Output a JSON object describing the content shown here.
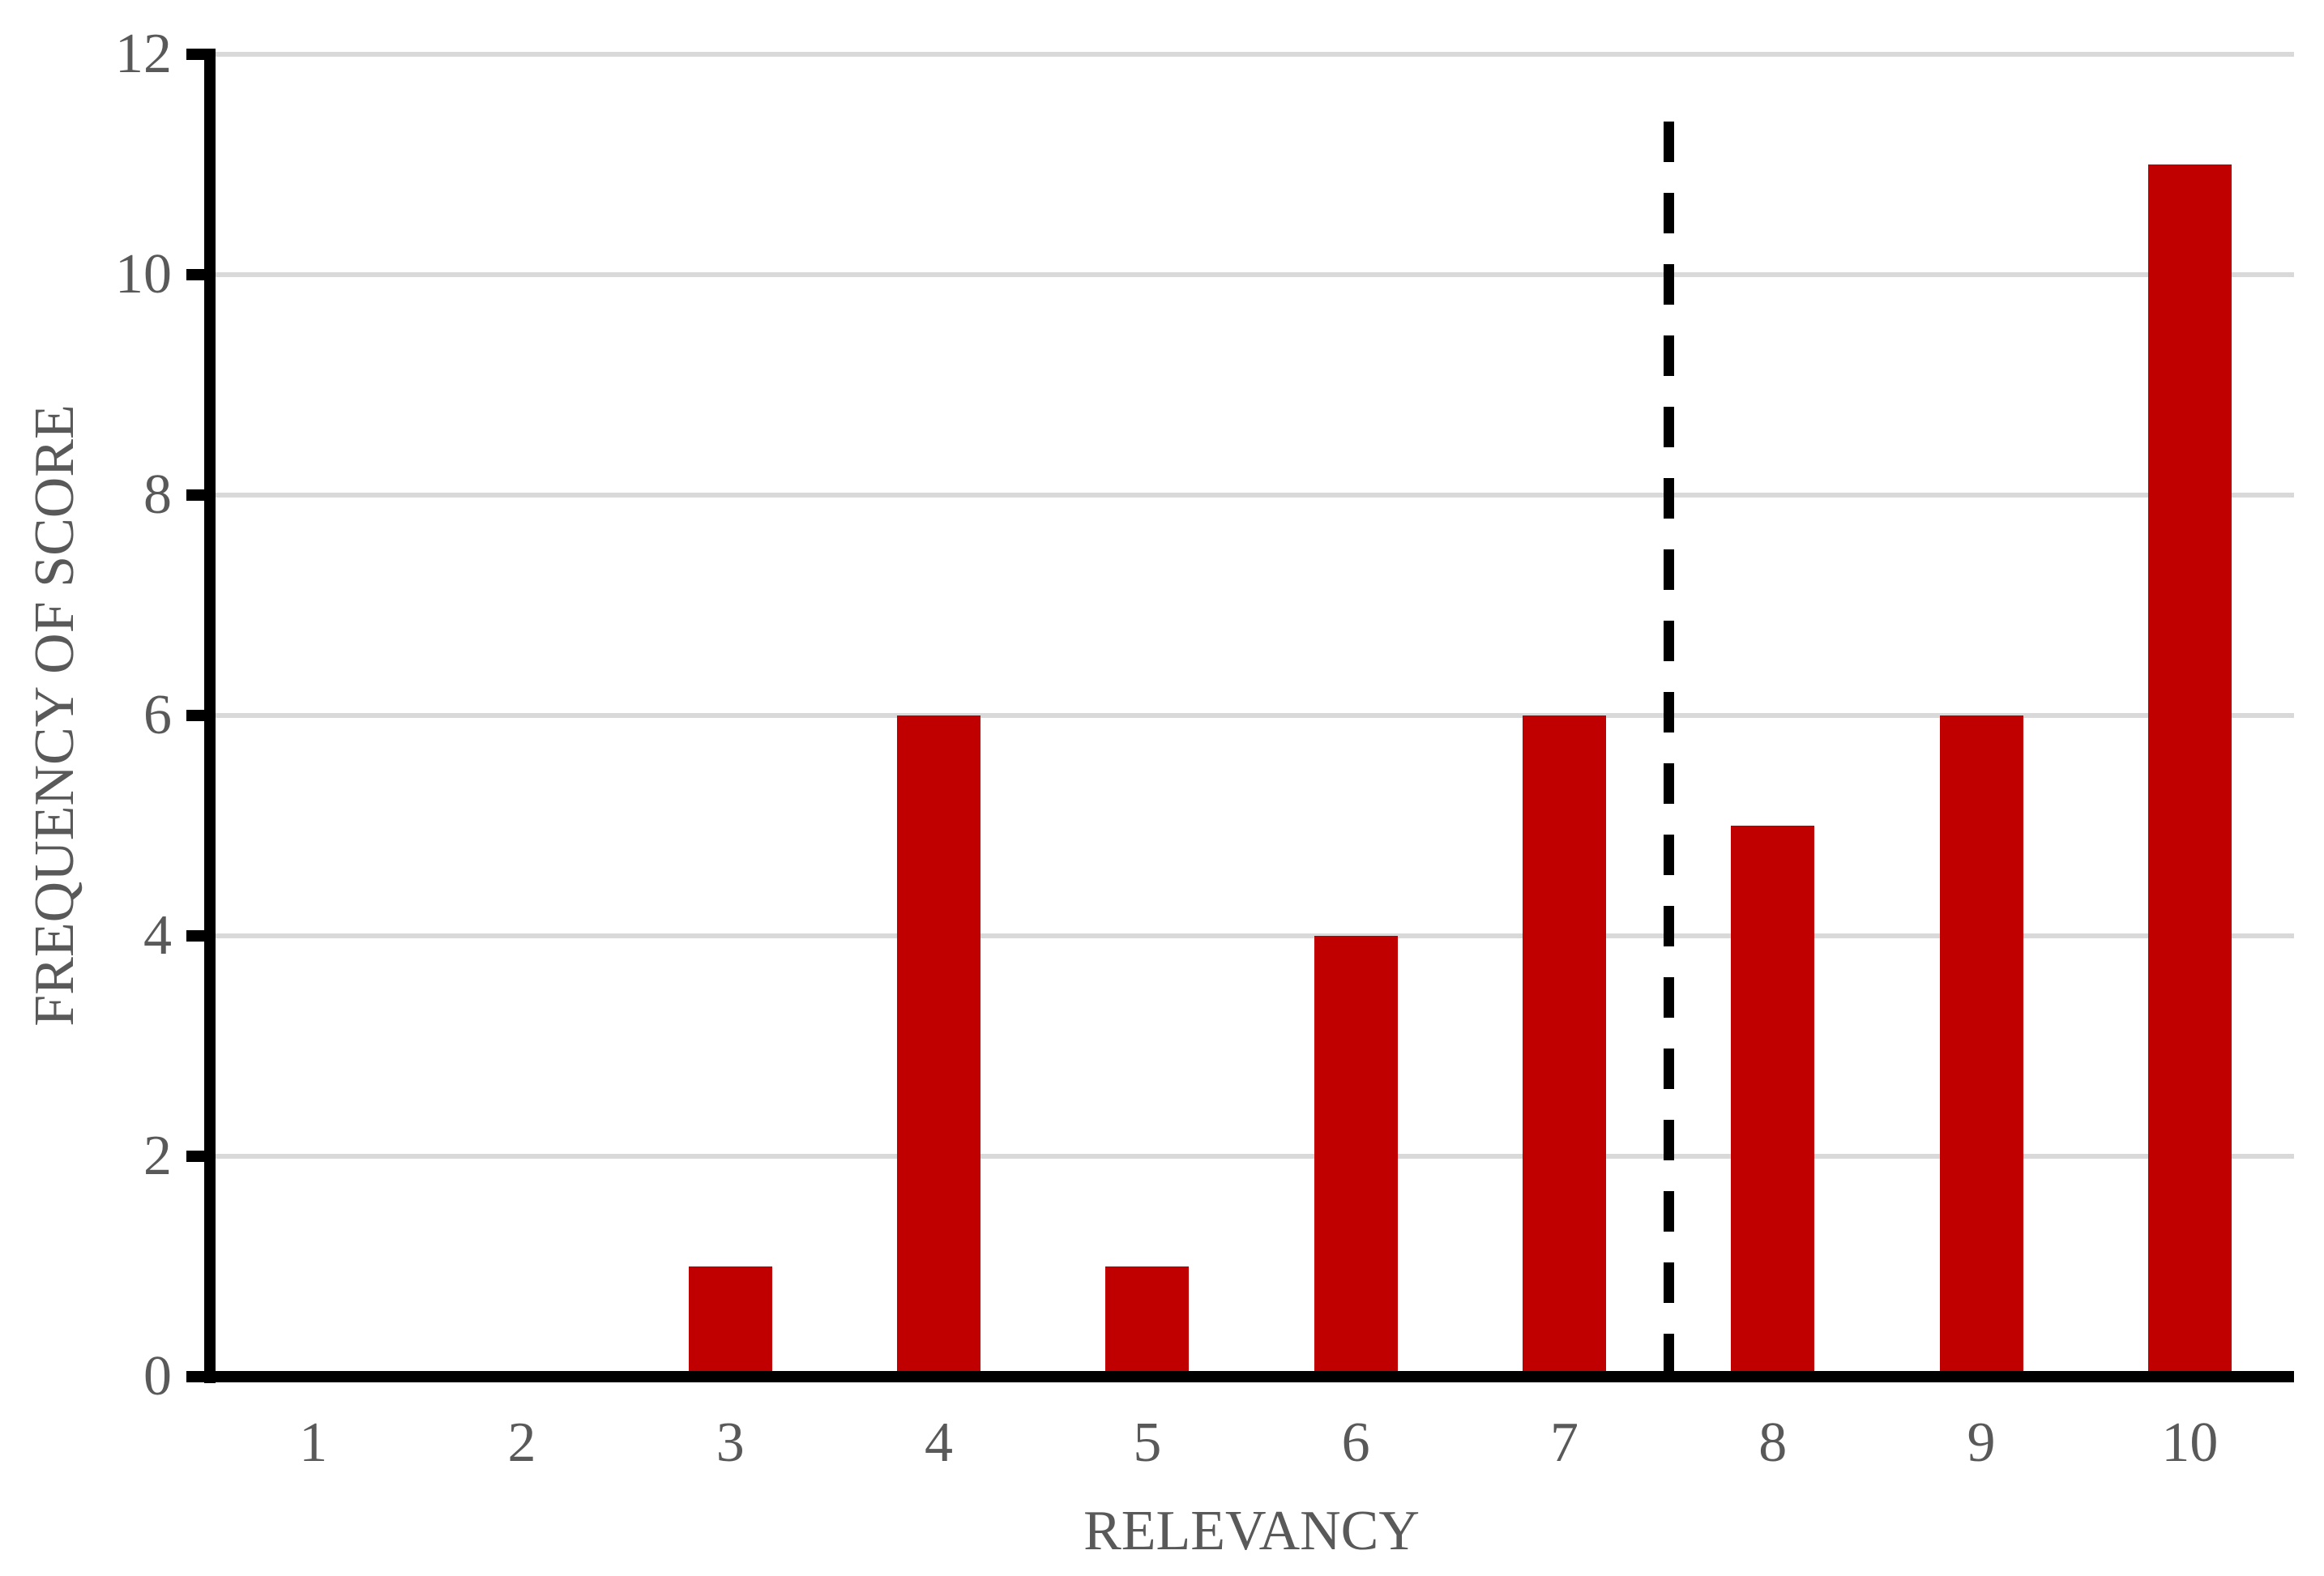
{
  "chart_data": {
    "type": "bar",
    "title": "",
    "categories": [
      "1",
      "2",
      "3",
      "4",
      "5",
      "6",
      "7",
      "8",
      "9",
      "10"
    ],
    "values": [
      0,
      0,
      1,
      6,
      1,
      4,
      6,
      5,
      6,
      11
    ],
    "xlabel": "RELEVANCY",
    "ylabel": "FREQUENCY OF SCORE",
    "ylim": [
      0,
      12
    ],
    "yticks": [
      0,
      2,
      4,
      6,
      8,
      10,
      12
    ],
    "grid": true,
    "legend": false,
    "bar_color": "#C00000",
    "gridline_color": "#D9D9D9",
    "axis_color": "#000000",
    "text_color": "#595959",
    "reference_line": {
      "x": 7.5,
      "style": "dashed",
      "color": "#000000"
    }
  }
}
